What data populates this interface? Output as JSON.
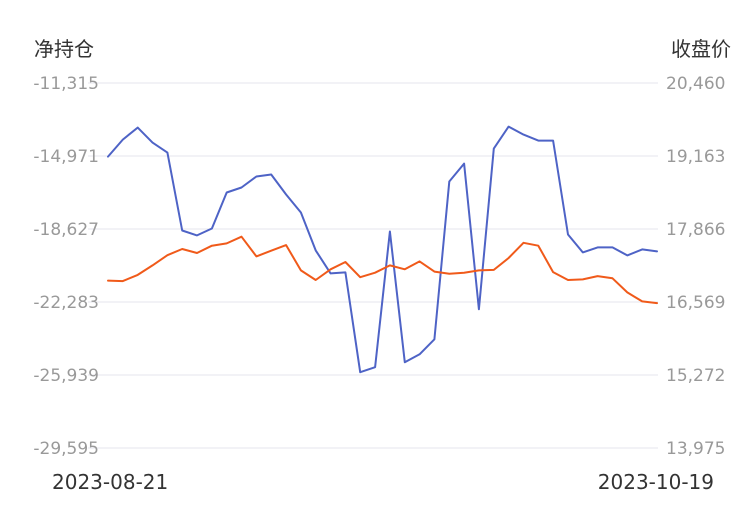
{
  "chart_data": {
    "type": "line",
    "left_axis_title": "净持仓",
    "right_axis_title": "收盘价",
    "left_ticks": [
      "-11,315",
      "-14,971",
      "-18,627",
      "-22,283",
      "-25,939",
      "-29,595"
    ],
    "right_ticks": [
      "20,460",
      "19,163",
      "17,866",
      "16,569",
      "15,272",
      "13,975"
    ],
    "y_left_range": [
      -29595,
      -11315
    ],
    "y_right_range": [
      13975,
      20460
    ],
    "x_start_label": "2023-08-21",
    "x_end_label": "2023-10-19",
    "grid": true,
    "series": [
      {
        "axis": "left",
        "color": "#4e63c6",
        "values": [
          -15000,
          -14150,
          -13550,
          -14300,
          -14800,
          -18700,
          -18950,
          -18600,
          -16800,
          -16550,
          -16000,
          -15900,
          -16900,
          -17800,
          -19700,
          -20850,
          -20800,
          -25800,
          -25550,
          -18750,
          -25300,
          -24900,
          -24150,
          -16250,
          -15350,
          -22650,
          -14600,
          -13500,
          -13900,
          -14200,
          -14200,
          -18900,
          -19800,
          -19550,
          -19550,
          -19950,
          -19650,
          -19750
        ]
      },
      {
        "axis": "right",
        "color": "#f05a1a",
        "values": [
          16950,
          16940,
          17050,
          17220,
          17400,
          17510,
          17440,
          17570,
          17610,
          17730,
          17380,
          17480,
          17580,
          17130,
          16960,
          17150,
          17280,
          17010,
          17090,
          17220,
          17150,
          17290,
          17110,
          17070,
          17090,
          17130,
          17140,
          17350,
          17620,
          17570,
          17100,
          16960,
          16970,
          17030,
          16990,
          16740,
          16580,
          16550
        ]
      }
    ]
  }
}
